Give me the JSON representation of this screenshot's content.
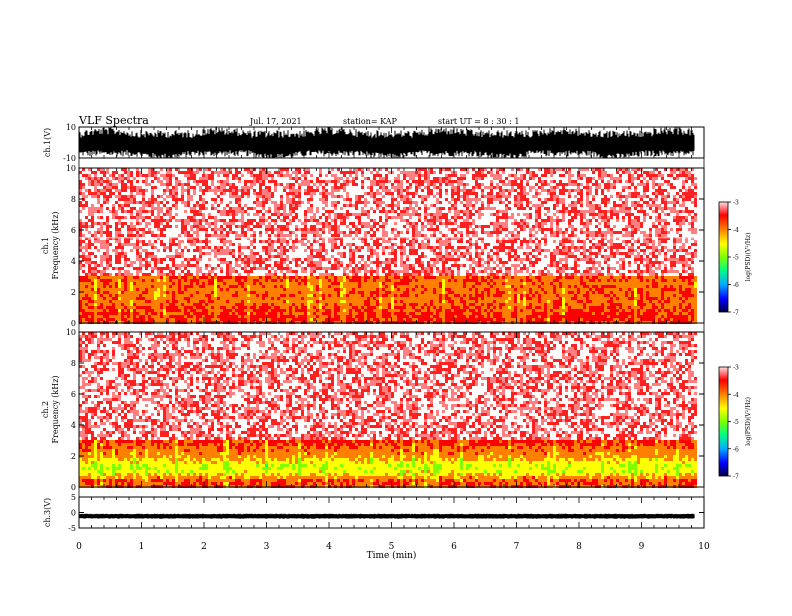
{
  "header": {
    "title": "VLF Spectra",
    "date": "Jul. 17, 2021",
    "station": "station= KAP",
    "start": "start UT =  8 : 30 : 1"
  },
  "colors": {
    "background": "#ffffff",
    "colormap": [
      "#000080",
      "#0000ff",
      "#00aaff",
      "#00ff80",
      "#80ff00",
      "#ffff00",
      "#ff8000",
      "#ff0000",
      "#ffffff"
    ]
  },
  "chart_data": [
    {
      "type": "line",
      "panel": "ch1_waveform",
      "ylabel": "ch.1(V)",
      "ylim": [
        -10,
        10
      ],
      "yticks": [
        10,
        -10
      ],
      "description_values": {
        "typical_min_V": -9,
        "typical_max_V": 8
      }
    },
    {
      "type": "heatmap",
      "panel": "ch1_spectrogram",
      "ylabel": "ch.1\nFrequency (kHz)",
      "ylabel_lines": [
        "ch.1",
        "Frequency (kHz)"
      ],
      "ylim": [
        0,
        10
      ],
      "yticks": [
        "0",
        "2",
        "4",
        "6",
        "8",
        "10"
      ],
      "colorbar": {
        "label": "log(PSD)(V²/Hz)",
        "range": [
          -7,
          -3
        ],
        "ticks": [
          "-3",
          "-4",
          "-5",
          "-6",
          "-7"
        ]
      },
      "band_profile_kHz": [
        {
          "freq": 0.5,
          "level": -3.6
        },
        {
          "freq": 1.0,
          "level": -3.7
        },
        {
          "freq": 1.5,
          "level": -3.9
        },
        {
          "freq": 2.0,
          "level": -3.8
        },
        {
          "freq": 2.5,
          "level": -3.9
        },
        {
          "freq": 3.0,
          "level": -3.7
        },
        {
          "freq": 5.0,
          "level": -3.3
        },
        {
          "freq": 8.0,
          "level": -3.2
        }
      ],
      "horizontal_lines_kHz": [
        5.5
      ]
    },
    {
      "type": "heatmap",
      "panel": "ch2_spectrogram",
      "ylabel": "ch.2\nFrequency (kHz)",
      "ylabel_lines": [
        "ch.2",
        "Frequency (kHz)"
      ],
      "ylim": [
        0,
        10
      ],
      "yticks": [
        "0",
        "2",
        "4",
        "6",
        "8",
        "10"
      ],
      "colorbar": {
        "label": "log(PSD)(V²/Hz)",
        "range": [
          -7,
          -3
        ],
        "ticks": [
          "-3",
          "-4",
          "-5",
          "-6",
          "-7"
        ]
      },
      "band_profile_kHz": [
        {
          "freq": 0.5,
          "level": -3.7
        },
        {
          "freq": 1.0,
          "level": -4.5
        },
        {
          "freq": 1.5,
          "level": -4.6
        },
        {
          "freq": 2.0,
          "level": -4.1
        },
        {
          "freq": 2.5,
          "level": -3.9
        },
        {
          "freq": 3.0,
          "level": -3.6
        },
        {
          "freq": 5.0,
          "level": -3.3
        },
        {
          "freq": 8.0,
          "level": -3.2
        }
      ]
    },
    {
      "type": "line",
      "panel": "ch3_waveform",
      "ylabel": "ch.3(V)",
      "ylim": [
        -5,
        5
      ],
      "yticks": [
        "5",
        "0",
        "-5"
      ],
      "description_values": {
        "center_V": -1.2,
        "amplitude_V": 0.6
      }
    }
  ],
  "x_axis": {
    "label": "Time (min)",
    "range": [
      0,
      10
    ],
    "ticks": [
      "0",
      "1",
      "2",
      "3",
      "4",
      "5",
      "6",
      "7",
      "8",
      "9",
      "10"
    ],
    "data_end_min": 9.85
  }
}
